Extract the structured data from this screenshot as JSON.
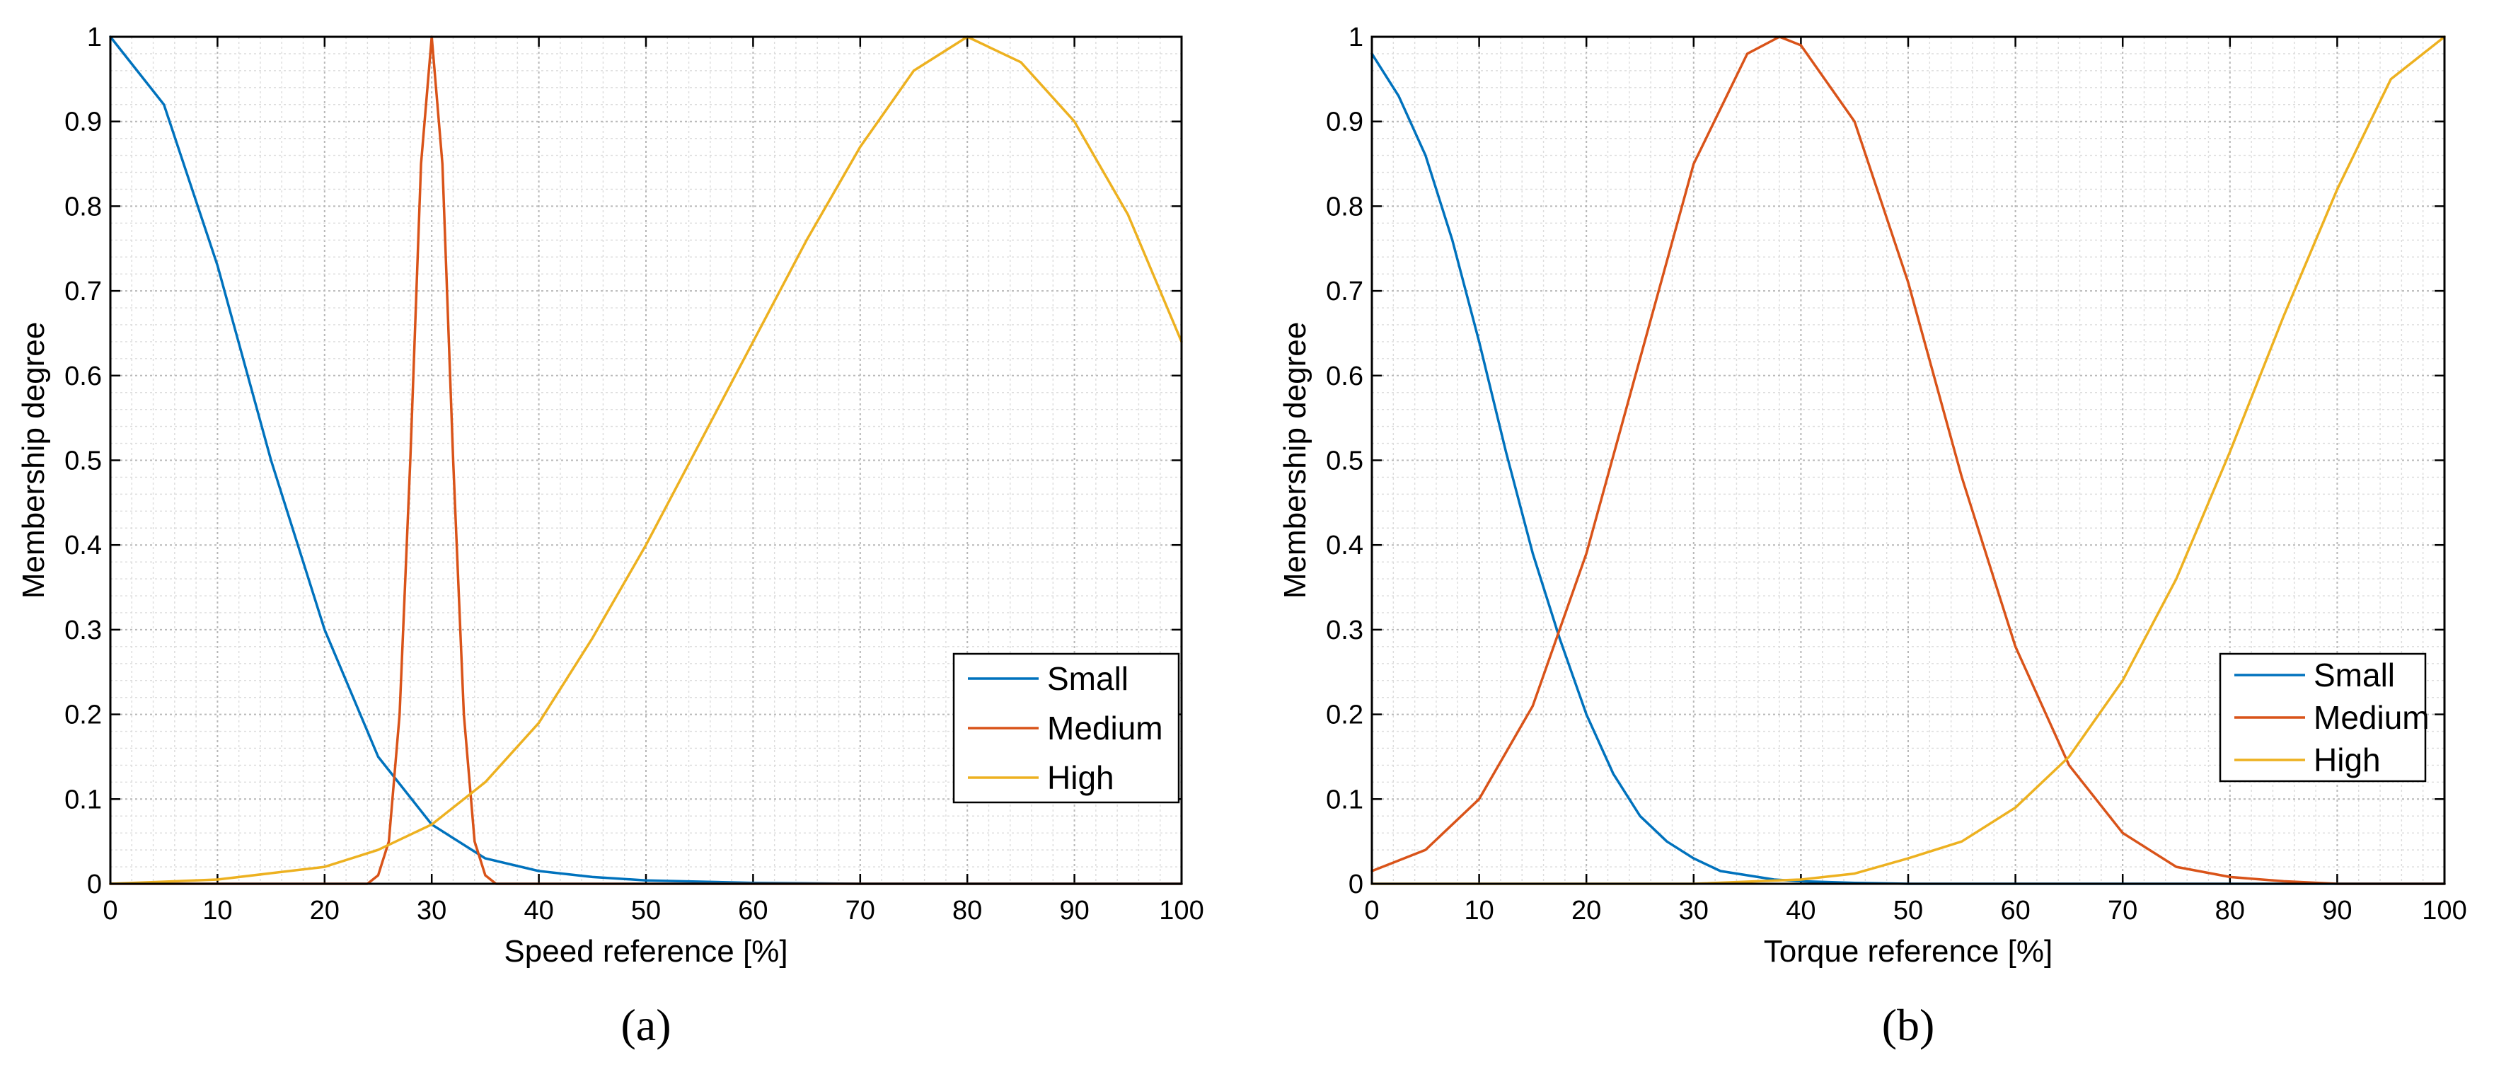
{
  "chart_data": [
    {
      "type": "line",
      "panel_label": "(a)",
      "xlabel": "Speed reference [%]",
      "ylabel": "Membership degree",
      "xlim": [
        0,
        100
      ],
      "ylim": [
        0,
        1
      ],
      "x_ticks": [
        "0",
        "10",
        "20",
        "30",
        "40",
        "50",
        "60",
        "70",
        "80",
        "90",
        "100"
      ],
      "y_ticks": [
        "0",
        "0.1",
        "0.2",
        "0.3",
        "0.4",
        "0.5",
        "0.6",
        "0.7",
        "0.8",
        "0.9",
        "1"
      ],
      "grid": true,
      "legend_position": "bottom-right",
      "series": [
        {
          "name": "Small",
          "color": "#0072BD",
          "x": [
            0,
            5,
            10,
            15,
            20,
            25,
            30,
            35,
            40,
            45,
            50,
            60,
            70,
            80,
            90,
            100
          ],
          "y": [
            1.0,
            0.92,
            0.73,
            0.5,
            0.3,
            0.15,
            0.07,
            0.03,
            0.015,
            0.008,
            0.004,
            0.001,
            0,
            0,
            0,
            0
          ]
        },
        {
          "name": "Medium",
          "color": "#D95319",
          "x": [
            0,
            24,
            25,
            26,
            27,
            28,
            29,
            30,
            31,
            32,
            33,
            34,
            35,
            36,
            100
          ],
          "y": [
            0,
            0,
            0.01,
            0.05,
            0.2,
            0.5,
            0.85,
            1.0,
            0.85,
            0.5,
            0.2,
            0.05,
            0.01,
            0,
            0
          ]
        },
        {
          "name": "High",
          "color": "#EDB120",
          "x": [
            0,
            10,
            20,
            25,
            30,
            35,
            40,
            45,
            50,
            55,
            60,
            65,
            70,
            75,
            80,
            85,
            90,
            95,
            100
          ],
          "y": [
            0,
            0.005,
            0.02,
            0.04,
            0.07,
            0.12,
            0.19,
            0.29,
            0.4,
            0.52,
            0.64,
            0.76,
            0.87,
            0.96,
            1.0,
            0.97,
            0.9,
            0.79,
            0.64
          ]
        }
      ]
    },
    {
      "type": "line",
      "panel_label": "(b)",
      "xlabel": "Torque reference [%]",
      "ylabel": "Membership degree",
      "xlim": [
        0,
        100
      ],
      "ylim": [
        0,
        1
      ],
      "x_ticks": [
        "0",
        "10",
        "20",
        "30",
        "40",
        "50",
        "60",
        "70",
        "80",
        "90",
        "100"
      ],
      "y_ticks": [
        "0",
        "0.1",
        "0.2",
        "0.3",
        "0.4",
        "0.5",
        "0.6",
        "0.7",
        "0.8",
        "0.9",
        "1"
      ],
      "grid": true,
      "legend_position": "bottom-right",
      "series": [
        {
          "name": "Small",
          "color": "#0072BD",
          "x": [
            0,
            2.5,
            5,
            7.5,
            10,
            12.5,
            15,
            17.5,
            20,
            22.5,
            25,
            27.5,
            30,
            32.5,
            35,
            37.5,
            40,
            45,
            50,
            60,
            70,
            80,
            90,
            100
          ],
          "y": [
            0.98,
            0.93,
            0.86,
            0.76,
            0.64,
            0.51,
            0.39,
            0.29,
            0.2,
            0.13,
            0.08,
            0.05,
            0.03,
            0.015,
            0.01,
            0.005,
            0.003,
            0.001,
            0,
            0,
            0,
            0,
            0,
            0
          ]
        },
        {
          "name": "Medium",
          "color": "#D95319",
          "x": [
            0,
            5,
            10,
            15,
            20,
            25,
            30,
            35,
            38,
            40,
            45,
            50,
            55,
            60,
            65,
            70,
            75,
            80,
            85,
            90,
            100
          ],
          "y": [
            0.015,
            0.04,
            0.1,
            0.21,
            0.39,
            0.62,
            0.85,
            0.98,
            1.0,
            0.99,
            0.9,
            0.71,
            0.48,
            0.28,
            0.14,
            0.06,
            0.02,
            0.008,
            0.003,
            0,
            0
          ]
        },
        {
          "name": "High",
          "color": "#EDB120",
          "x": [
            0,
            30,
            40,
            45,
            50,
            55,
            60,
            65,
            70,
            75,
            80,
            85,
            90,
            95,
            100
          ],
          "y": [
            0,
            0,
            0.005,
            0.012,
            0.03,
            0.05,
            0.09,
            0.15,
            0.24,
            0.36,
            0.51,
            0.67,
            0.82,
            0.95,
            1.0
          ]
        }
      ]
    }
  ]
}
